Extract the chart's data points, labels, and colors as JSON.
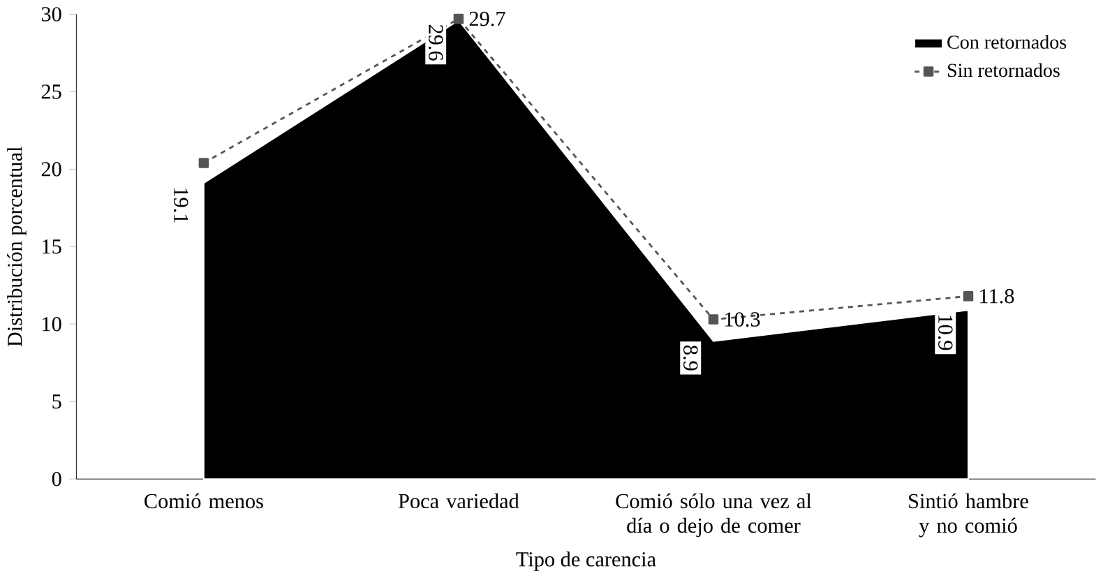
{
  "chart_data": {
    "type": "area",
    "xlabel": "Tipo de carencia",
    "ylabel": "Distribución porcentual",
    "categories": [
      "Comió menos",
      "Poca variedad",
      "Comió sólo una vez al día o dejo de comer",
      "Sintió hambre y no comió"
    ],
    "series": [
      {
        "name": "Con retornados",
        "color": "#000000",
        "values": [
          19.1,
          29.6,
          8.9,
          10.9
        ],
        "value_labels": [
          "19.1",
          "29.6",
          "8.9",
          "10.9"
        ]
      },
      {
        "name": "Sin retornados",
        "type": "line",
        "color": "#555555",
        "marker": "square",
        "line_style": "dashed",
        "values": [
          20.4,
          29.7,
          10.3,
          11.8
        ],
        "value_labels": [
          null,
          "29.7",
          "10.3",
          "11.8"
        ]
      }
    ],
    "ylim": [
      0,
      30
    ],
    "yticks": [
      0,
      5,
      10,
      15,
      20,
      25,
      30
    ],
    "legend": "top right",
    "grid": false
  }
}
